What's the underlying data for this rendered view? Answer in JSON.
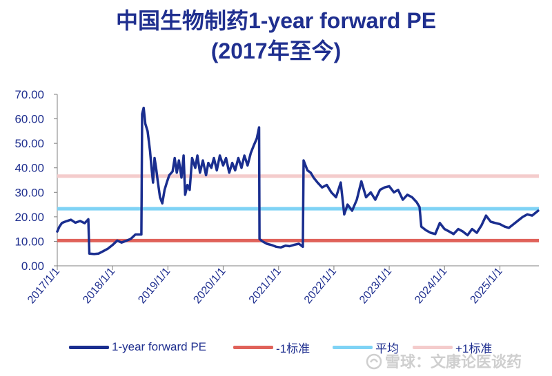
{
  "chart_data": {
    "type": "line",
    "title_line1": "中国生物制药1-year forward PE",
    "title_line2": "(2017年至今)",
    "ylim": [
      0,
      70
    ],
    "y_ticks": [
      "0.00",
      "10.00",
      "20.00",
      "30.00",
      "40.00",
      "50.00",
      "60.00",
      "70.00"
    ],
    "x_ticks": [
      "2017/1/1",
      "2018/1/1",
      "2019/1/1",
      "2020/1/1",
      "2021/1/1",
      "2022/1/1",
      "2023/1/1",
      "2024/1/1",
      "2025/1/1"
    ],
    "x_range": [
      "2017/1/1",
      "2025/9/15"
    ],
    "reference_lines": [
      {
        "name": "-1标准",
        "value": 10.3,
        "color": "#e0625a"
      },
      {
        "name": "平均",
        "value": 23.3,
        "color": "#7fd3f5"
      },
      {
        "name": "+1标准",
        "value": 36.6,
        "color": "#f4cccc"
      }
    ],
    "series": [
      {
        "name": "1-year forward PE",
        "color": "#1a2e8f",
        "points": [
          [
            "2017/1/1",
            14.0
          ],
          [
            "2017/1/15",
            16.0
          ],
          [
            "2017/2/1",
            17.5
          ],
          [
            "2017/3/1",
            18.2
          ],
          [
            "2017/4/1",
            18.8
          ],
          [
            "2017/5/1",
            17.6
          ],
          [
            "2017/6/1",
            18.3
          ],
          [
            "2017/7/1",
            17.4
          ],
          [
            "2017/7/25",
            19.0
          ],
          [
            "2017/8/1",
            5.0
          ],
          [
            "2017/9/1",
            4.8
          ],
          [
            "2017/10/1",
            5.0
          ],
          [
            "2017/11/1",
            6.0
          ],
          [
            "2017/12/1",
            7.0
          ],
          [
            "2018/1/1",
            8.5
          ],
          [
            "2018/2/1",
            10.3
          ],
          [
            "2018/3/1",
            9.5
          ],
          [
            "2018/4/1",
            10.2
          ],
          [
            "2018/5/1",
            11.0
          ],
          [
            "2018/6/1",
            12.8
          ],
          [
            "2018/7/10",
            12.8
          ],
          [
            "2018/7/15",
            62.0
          ],
          [
            "2018/7/25",
            64.5
          ],
          [
            "2018/8/5",
            58.0
          ],
          [
            "2018/8/20",
            55.0
          ],
          [
            "2018/9/5",
            47.0
          ],
          [
            "2018/9/15",
            40.0
          ],
          [
            "2018/9/25",
            34.0
          ],
          [
            "2018/10/5",
            44.0
          ],
          [
            "2018/10/15",
            40.0
          ],
          [
            "2018/10/25",
            35.0
          ],
          [
            "2018/11/10",
            28.0
          ],
          [
            "2018/11/25",
            25.5
          ],
          [
            "2018/12/10",
            31.0
          ],
          [
            "2018/12/25",
            34.0
          ],
          [
            "2019/1/10",
            37.0
          ],
          [
            "2019/2/1",
            38.5
          ],
          [
            "2019/2/15",
            44.0
          ],
          [
            "2019/3/1",
            38.0
          ],
          [
            "2019/3/15",
            43.0
          ],
          [
            "2019/4/1",
            36.0
          ],
          [
            "2019/4/15",
            45.0
          ],
          [
            "2019/4/25",
            29.0
          ],
          [
            "2019/5/10",
            33.0
          ],
          [
            "2019/5/25",
            31.0
          ],
          [
            "2019/6/10",
            44.0
          ],
          [
            "2019/7/1",
            40.0
          ],
          [
            "2019/7/15",
            45.0
          ],
          [
            "2019/8/1",
            38.0
          ],
          [
            "2019/8/20",
            43.0
          ],
          [
            "2019/9/10",
            37.0
          ],
          [
            "2019/9/25",
            42.0
          ],
          [
            "2019/10/15",
            40.0
          ],
          [
            "2019/11/1",
            44.0
          ],
          [
            "2019/11/20",
            39.0
          ],
          [
            "2019/12/10",
            45.0
          ],
          [
            "2020/1/1",
            41.0
          ],
          [
            "2020/1/20",
            44.0
          ],
          [
            "2020/2/10",
            38.0
          ],
          [
            "2020/3/1",
            42.0
          ],
          [
            "2020/3/20",
            39.0
          ],
          [
            "2020/4/10",
            44.0
          ],
          [
            "2020/5/1",
            40.0
          ],
          [
            "2020/5/20",
            45.0
          ],
          [
            "2020/6/10",
            41.0
          ],
          [
            "2020/7/1",
            46.0
          ],
          [
            "2020/7/20",
            49.0
          ],
          [
            "2020/8/10",
            52.0
          ],
          [
            "2020/8/25",
            56.5
          ],
          [
            "2020/8/28",
            11.0
          ],
          [
            "2020/9/15",
            10.0
          ],
          [
            "2020/10/15",
            9.0
          ],
          [
            "2020/11/15",
            8.5
          ],
          [
            "2020/12/15",
            7.8
          ],
          [
            "2021/1/15",
            7.5
          ],
          [
            "2021/2/15",
            8.2
          ],
          [
            "2021/3/15",
            8.0
          ],
          [
            "2021/4/15",
            8.6
          ],
          [
            "2021/5/15",
            9.0
          ],
          [
            "2021/6/10",
            7.8
          ],
          [
            "2021/6/15",
            43.0
          ],
          [
            "2021/7/10",
            39.0
          ],
          [
            "2021/8/1",
            38.0
          ],
          [
            "2021/8/20",
            36.0
          ],
          [
            "2021/9/15",
            34.0
          ],
          [
            "2021/10/15",
            32.0
          ],
          [
            "2021/11/15",
            33.0
          ],
          [
            "2021/12/15",
            30.0
          ],
          [
            "2022/1/15",
            28.0
          ],
          [
            "2022/2/15",
            34.0
          ],
          [
            "2022/3/10",
            21.0
          ],
          [
            "2022/4/1",
            25.0
          ],
          [
            "2022/5/1",
            22.5
          ],
          [
            "2022/6/1",
            27.0
          ],
          [
            "2022/7/1",
            34.5
          ],
          [
            "2022/8/1",
            28.0
          ],
          [
            "2022/9/1",
            30.0
          ],
          [
            "2022/10/1",
            27.0
          ],
          [
            "2022/11/1",
            31.0
          ],
          [
            "2022/12/1",
            32.0
          ],
          [
            "2023/1/1",
            32.5
          ],
          [
            "2023/2/1",
            30.0
          ],
          [
            "2023/3/1",
            31.0
          ],
          [
            "2023/4/1",
            27.0
          ],
          [
            "2023/5/1",
            29.0
          ],
          [
            "2023/6/1",
            28.0
          ],
          [
            "2023/7/1",
            26.0
          ],
          [
            "2023/7/20",
            24.0
          ],
          [
            "2023/8/1",
            16.0
          ],
          [
            "2023/9/1",
            14.5
          ],
          [
            "2023/10/1",
            13.5
          ],
          [
            "2023/11/1",
            13.0
          ],
          [
            "2023/12/1",
            17.5
          ],
          [
            "2024/1/1",
            15.0
          ],
          [
            "2024/2/1",
            14.0
          ],
          [
            "2024/3/1",
            13.0
          ],
          [
            "2024/4/1",
            15.0
          ],
          [
            "2024/5/1",
            14.0
          ],
          [
            "2024/6/1",
            12.5
          ],
          [
            "2024/7/1",
            15.0
          ],
          [
            "2024/8/1",
            13.5
          ],
          [
            "2024/9/1",
            16.5
          ],
          [
            "2024/10/1",
            20.5
          ],
          [
            "2024/11/1",
            18.0
          ],
          [
            "2024/12/1",
            17.5
          ],
          [
            "2025/1/1",
            17.0
          ],
          [
            "2025/2/1",
            16.0
          ],
          [
            "2025/3/1",
            15.5
          ],
          [
            "2025/4/1",
            17.0
          ],
          [
            "2025/5/1",
            18.5
          ],
          [
            "2025/6/1",
            20.0
          ],
          [
            "2025/7/1",
            21.0
          ],
          [
            "2025/8/1",
            20.5
          ],
          [
            "2025/9/10",
            22.5
          ]
        ]
      }
    ],
    "legend": [
      "1-year forward PE",
      "-1标准",
      "平均",
      "+1标准"
    ],
    "legend_position": "bottom",
    "grid": false
  },
  "watermark": "雪球：文康论医谈药"
}
